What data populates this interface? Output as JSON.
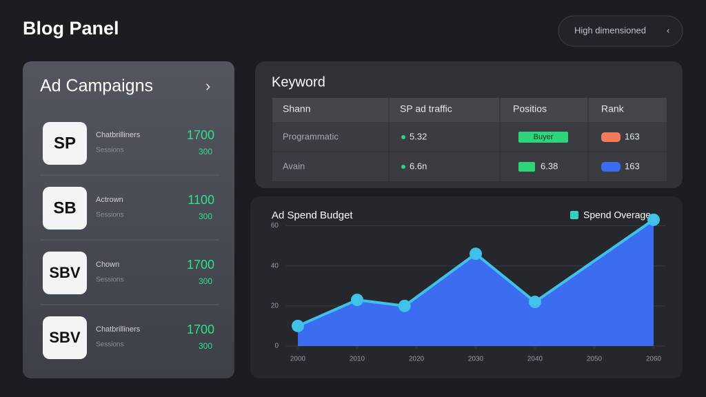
{
  "header": {
    "title": "Blog Panel",
    "button": "High dimensioned"
  },
  "campaigns": {
    "title": "Ad Campaigns",
    "items": [
      {
        "badge": "SP",
        "name": "Chatbrilliners",
        "sub": "Sessions",
        "value": "1700",
        "subvalue": "300"
      },
      {
        "badge": "SB",
        "name": "Actrown",
        "sub": "Sessions",
        "value": "1100",
        "subvalue": "300"
      },
      {
        "badge": "SBV",
        "name": "Chown",
        "sub": "Sessions",
        "value": "1700",
        "subvalue": "300"
      },
      {
        "badge": "SBV",
        "name": "Chatbrilliners",
        "sub": "Sessions",
        "value": "1700",
        "subvalue": "300"
      }
    ]
  },
  "table": {
    "title": "Keyword",
    "columns": [
      "Shann",
      "SP ad traffic",
      "Positios",
      "Rank"
    ],
    "rows": [
      {
        "name": "Programmatic",
        "traffic": "5.32",
        "traffic_color": "#2ed47a",
        "position": "Buyer",
        "position_color": "#2ed47a",
        "rank": "163",
        "rank_color": "#f07a5a"
      },
      {
        "name": "Avain",
        "traffic": "6.6n",
        "traffic_color": "#2ed47a",
        "position": "6.38",
        "position_color": "#2ed47a",
        "rank": "163",
        "rank_color": "#3a6cf0"
      }
    ]
  },
  "chart_data": {
    "type": "area",
    "title": "Ad Spend Budget",
    "series": [
      {
        "name": "Spend Overage",
        "color": "#3c6cf0",
        "line_color": "#3fc1e8",
        "values": [
          10,
          23,
          20,
          46,
          22,
          63
        ]
      }
    ],
    "x": [
      2000,
      2010,
      2018,
      2030,
      2040,
      2060
    ],
    "xlim": [
      2000,
      2060
    ],
    "xticks": [
      2000,
      2010,
      2020,
      2030,
      2040,
      2050,
      2060
    ],
    "ylim": [
      0,
      65
    ],
    "yticks": [
      0,
      20,
      40,
      60
    ],
    "grid": true
  }
}
